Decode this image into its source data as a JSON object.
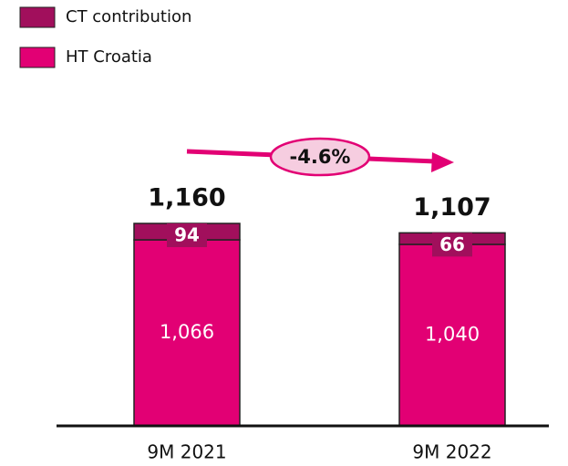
{
  "chart_data": {
    "type": "stacked_bar",
    "categories": [
      "9M 2021",
      "9M 2022"
    ],
    "series": [
      {
        "name": "HT Croatia",
        "color": "#e20074",
        "values": [
          1066,
          1040
        ],
        "value_labels": [
          "1,066",
          "1,040"
        ]
      },
      {
        "name": "CT contribution",
        "color": "#a10f5c",
        "values": [
          94,
          66
        ],
        "value_labels": [
          "94",
          "66"
        ]
      }
    ],
    "total_labels": [
      "1,160",
      "1,107"
    ],
    "annotation": "-4.6%"
  }
}
